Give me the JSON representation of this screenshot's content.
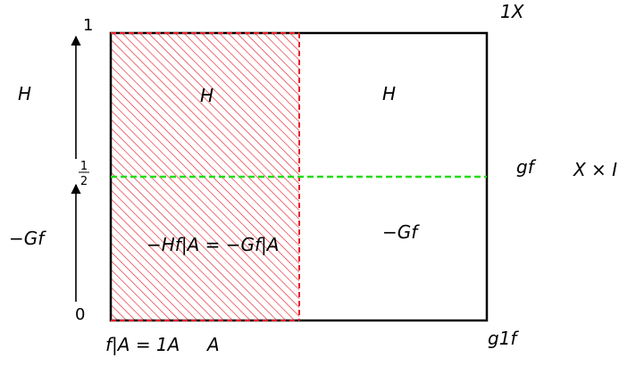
{
  "colors": {
    "hatch": "#e8202a",
    "dashed_red": "#e8202a",
    "dashed_green": "#22dd11",
    "frame": "#000000"
  },
  "axis": {
    "top_label": "1",
    "bottom_label": "0",
    "mid_label_num": "1",
    "mid_label_den": "2"
  },
  "labels": {
    "left_upper": "H",
    "left_lower": "−Gf",
    "inner_upper_left": "H",
    "inner_upper_right": "H",
    "inner_lower_left": "−Hf|A = −Gf|A",
    "inner_lower_right": "−Gf",
    "right_mid": "gf",
    "far_right": "X × I",
    "top_right": "1X",
    "bottom_right": "g1f",
    "bottom_left": "f|A = 1A",
    "bottom_mid": "A"
  }
}
